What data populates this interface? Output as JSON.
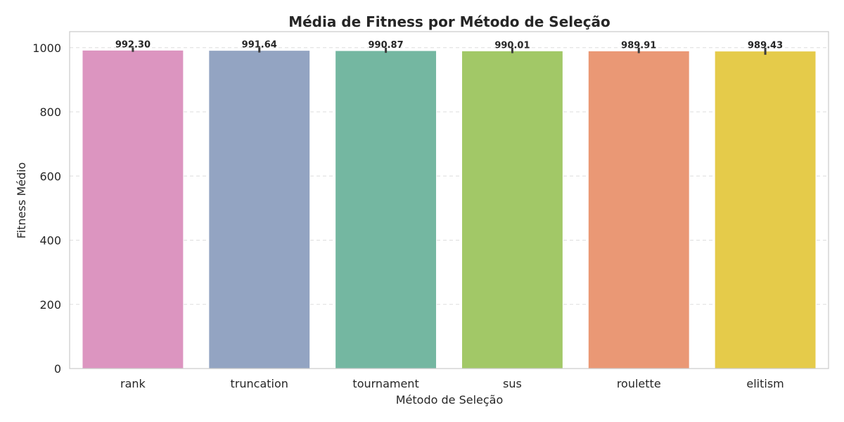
{
  "chart_data": {
    "type": "bar",
    "title": "Média de Fitness por Método de Seleção",
    "xlabel": "Método de Seleção",
    "ylabel": "Fitness Médio",
    "ylim": [
      0,
      1050
    ],
    "yticks": [
      0,
      200,
      400,
      600,
      800,
      1000
    ],
    "ytick_labels": [
      "0",
      "200",
      "400",
      "600",
      "800",
      "1000"
    ],
    "grid": "y-dashed",
    "categories": [
      "rank",
      "truncation",
      "tournament",
      "sus",
      "roulette",
      "elitism"
    ],
    "values": [
      992.3,
      991.64,
      990.87,
      990.01,
      989.91,
      989.43
    ],
    "value_labels": [
      "992.30",
      "991.64",
      "990.87",
      "990.01",
      "989.91",
      "989.43"
    ],
    "error_low": [
      987,
      985,
      984,
      983,
      983,
      978
    ],
    "error_high": [
      1000,
      1000,
      1000,
      1000,
      1000,
      1000
    ],
    "colors": [
      "#dc95c0",
      "#93a4c2",
      "#74b7a1",
      "#a2c867",
      "#ea9875",
      "#e5cb4a"
    ]
  }
}
